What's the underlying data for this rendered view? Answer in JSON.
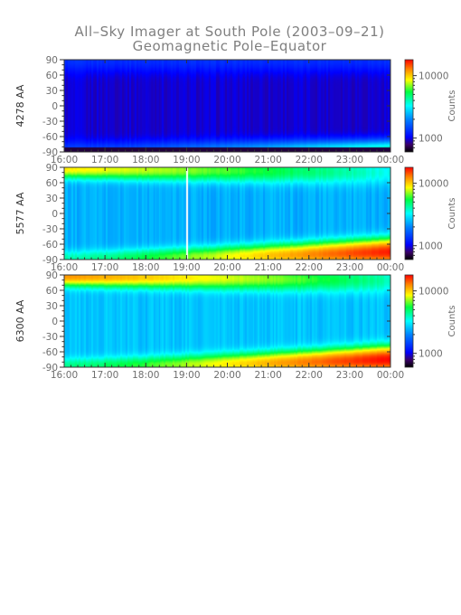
{
  "title_lines": [
    "All–Sky Imager at South Pole (2003–09–21)",
    "Geomagnetic Pole–Equator"
  ],
  "chart_data": [
    {
      "type": "heatmap",
      "ylabel": "4278 AA",
      "x_range": [
        "16:00",
        "00:00"
      ],
      "x_ticks": [
        "16:00",
        "17:00",
        "18:00",
        "19:00",
        "20:00",
        "21:00",
        "22:00",
        "23:00",
        "00:00"
      ],
      "y_range": [
        -90,
        90
      ],
      "y_ticks": [
        90,
        60,
        30,
        0,
        -30,
        -60,
        -90
      ],
      "colorbar": {
        "label": "Counts",
        "scale": "log",
        "ticks": [
          10000,
          1000
        ],
        "range": [
          600,
          18000
        ]
      },
      "features": {
        "base_counts": 950,
        "north_edge": 1300,
        "south_band_counts_start": 1500,
        "south_band_counts_end": 4500,
        "equatorward_floor": -82
      }
    },
    {
      "type": "heatmap",
      "ylabel": "5577 AA",
      "x_range": [
        "16:00",
        "00:00"
      ],
      "x_ticks": [
        "16:00",
        "17:00",
        "18:00",
        "19:00",
        "20:00",
        "21:00",
        "22:00",
        "23:00",
        "00:00"
      ],
      "y_range": [
        -90,
        90
      ],
      "y_ticks": [
        90,
        60,
        30,
        0,
        -30,
        -60,
        -90
      ],
      "colorbar": {
        "label": "Counts",
        "scale": "log",
        "ticks": [
          10000,
          1000
        ],
        "range": [
          600,
          18000
        ]
      },
      "features": {
        "base_counts": 2400,
        "north_peak_start": 9000,
        "north_peak_end": 3400,
        "south_peak_start": 4000,
        "south_peak_end": 17000,
        "gap_time": "19:00"
      }
    },
    {
      "type": "heatmap",
      "ylabel": "6300 AA",
      "x_range": [
        "16:00",
        "00:00"
      ],
      "x_ticks": [
        "16:00",
        "17:00",
        "18:00",
        "19:00",
        "20:00",
        "21:00",
        "22:00",
        "23:00",
        "00:00"
      ],
      "y_range": [
        -90,
        90
      ],
      "y_ticks": [
        90,
        60,
        30,
        0,
        -30,
        -60,
        -90
      ],
      "colorbar": {
        "label": "Counts",
        "scale": "log",
        "ticks": [
          10000,
          1000
        ],
        "range": [
          600,
          18000
        ]
      },
      "features": {
        "base_counts": 2600,
        "north_peak_start": 12000,
        "north_peak_end": 4000,
        "south_peak_start": 4500,
        "south_peak_end": 18000
      }
    }
  ]
}
